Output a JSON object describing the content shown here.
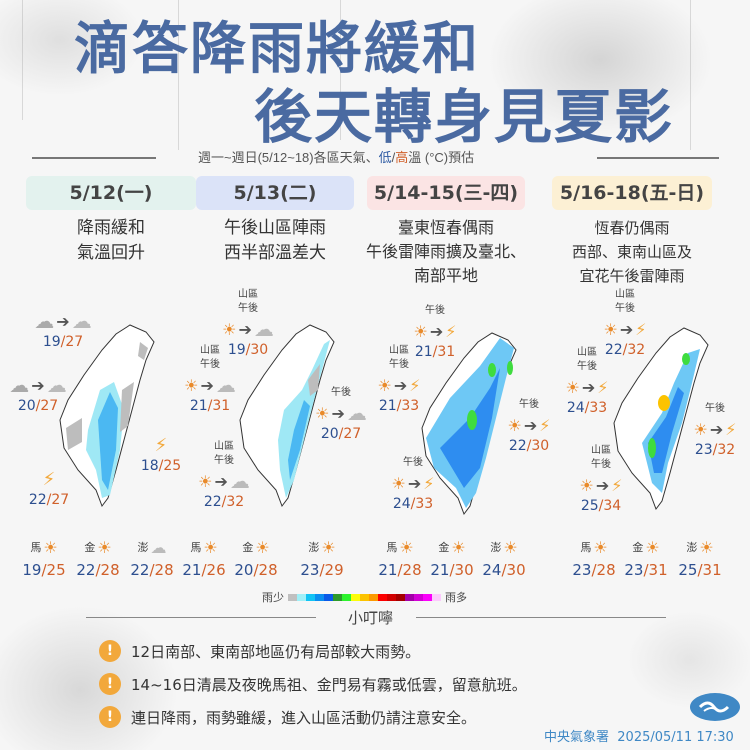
{
  "header": {
    "title_line1": "滴答降雨將緩和",
    "title_line2": "後天轉身見夏影",
    "subtitle_prefix": "週一~週日(5/12~18)各區天氣、",
    "subtitle_low": "低",
    "subtitle_slash": "/",
    "subtitle_high": "高",
    "subtitle_suffix": "溫 (°C)預估",
    "title_color": "#4a6aa1"
  },
  "days": [
    {
      "date": "5/12(一)",
      "header_color": "#e3f2ee",
      "desc": [
        "降雨緩和",
        "氣溫回升"
      ],
      "forecasts": [
        {
          "tag": [],
          "from": "rain-cloud",
          "to": "cloud",
          "low": "19",
          "high": "27"
        },
        {
          "tag": [],
          "from": "rain-cloud",
          "to": "cloud",
          "low": "20",
          "high": "27"
        },
        {
          "tag": [],
          "from": "thunder-cloud",
          "to": "",
          "low": "18",
          "high": "25"
        },
        {
          "tag": [],
          "from": "thunder-cloud",
          "to": "",
          "low": "22",
          "high": "27"
        }
      ],
      "islands": [
        {
          "name": "馬",
          "icon": "sun-cloud",
          "low": "19",
          "high": "25"
        },
        {
          "name": "金",
          "icon": "sun-cloud",
          "low": "22",
          "high": "28"
        },
        {
          "name": "澎",
          "icon": "cloud",
          "low": "22",
          "high": "28"
        }
      ]
    },
    {
      "date": "5/13(二)",
      "header_color": "#dbe3f8",
      "desc": [
        "午後山區陣雨",
        "西半部溫差大"
      ],
      "forecasts": [
        {
          "tag": [
            "山區",
            "午後"
          ],
          "from": "sun-cloud",
          "to": "rain-cloud",
          "low": "19",
          "high": "30"
        },
        {
          "tag": [
            "山區",
            "午後"
          ],
          "from": "sun-cloud",
          "to": "rain-cloud",
          "low": "21",
          "high": "31"
        },
        {
          "tag": [
            "午後"
          ],
          "from": "sun-cloud",
          "to": "rain-cloud",
          "low": "20",
          "high": "27"
        },
        {
          "tag": [
            "山區",
            "午後"
          ],
          "from": "sun-cloud",
          "to": "rain-cloud",
          "low": "22",
          "high": "32"
        }
      ],
      "islands": [
        {
          "name": "馬",
          "icon": "sun-cloud",
          "low": "21",
          "high": "26"
        },
        {
          "name": "金",
          "icon": "sun-cloud",
          "low": "20",
          "high": "28"
        },
        {
          "name": "澎",
          "icon": "sun-cloud",
          "low": "23",
          "high": "29"
        }
      ]
    },
    {
      "date": "5/14-15(三-四)",
      "header_color": "#fbe4e4",
      "desc": [
        "臺東恆春偶雨",
        "午後雷陣雨擴及臺北、",
        "南部平地"
      ],
      "forecasts": [
        {
          "tag": [
            "午後"
          ],
          "from": "sun-cloud",
          "to": "thunder-cloud",
          "low": "21",
          "high": "31"
        },
        {
          "tag": [
            "山區",
            "午後"
          ],
          "from": "sun-cloud",
          "to": "thunder-cloud",
          "low": "21",
          "high": "33"
        },
        {
          "tag": [
            "午後"
          ],
          "from": "sun-cloud",
          "to": "thunder-cloud",
          "low": "22",
          "high": "30"
        },
        {
          "tag": [
            "午後"
          ],
          "from": "sun-cloud",
          "to": "thunder-cloud",
          "low": "24",
          "high": "33"
        }
      ],
      "islands": [
        {
          "name": "馬",
          "icon": "sun-cloud",
          "low": "21",
          "high": "28"
        },
        {
          "name": "金",
          "icon": "sun-cloud",
          "low": "21",
          "high": "30"
        },
        {
          "name": "澎",
          "icon": "sun-cloud",
          "low": "24",
          "high": "30"
        }
      ]
    },
    {
      "date": "5/16-18(五-日)",
      "header_color": "#fcf0d4",
      "desc": [
        "恆春仍偶雨",
        "西部、東南山區及",
        "宜花午後雷陣雨"
      ],
      "forecasts": [
        {
          "tag": [
            "山區",
            "午後"
          ],
          "from": "sun-cloud",
          "to": "thunder-cloud",
          "low": "22",
          "high": "32"
        },
        {
          "tag": [
            "山區",
            "午後"
          ],
          "from": "sun-cloud",
          "to": "thunder-cloud",
          "low": "24",
          "high": "33"
        },
        {
          "tag": [
            "午後"
          ],
          "from": "sun-cloud",
          "to": "thunder-cloud",
          "low": "23",
          "high": "32"
        },
        {
          "tag": [
            "山區",
            "午後"
          ],
          "from": "sun-cloud",
          "to": "thunder-cloud",
          "low": "25",
          "high": "34"
        }
      ],
      "islands": [
        {
          "name": "馬",
          "icon": "sun-cloud",
          "low": "23",
          "high": "28"
        },
        {
          "name": "金",
          "icon": "sun-cloud",
          "low": "23",
          "high": "31"
        },
        {
          "name": "澎",
          "icon": "sun-cloud",
          "low": "25",
          "high": "31"
        }
      ]
    }
  ],
  "legend": {
    "less_label": "雨少",
    "more_label": "雨多",
    "colors": [
      "#c0c0c0",
      "#9ff0f8",
      "#12c3f4",
      "#0b8ef0",
      "#0a5ae8",
      "#2d9a2b",
      "#2df32d",
      "#fcfc0a",
      "#fcc300",
      "#fc9a00",
      "#fc0000",
      "#d10000",
      "#a50000",
      "#a300a8",
      "#d200d5",
      "#fb00fb",
      "#fcc9fd"
    ]
  },
  "notes": {
    "title": "小叮嚀",
    "items": [
      "12日南部、東南部地區仍有局部較大雨勢。",
      "14~16日清晨及夜晚馬祖、金門易有霧或低雲，留意航班。",
      "連日降雨，雨勢雖緩，進入山區活動仍請注意安全。"
    ],
    "icon_color": "#f2a83b"
  },
  "footer": {
    "agency": "中央氣象署",
    "timestamp": "2025/05/11 17:30"
  }
}
